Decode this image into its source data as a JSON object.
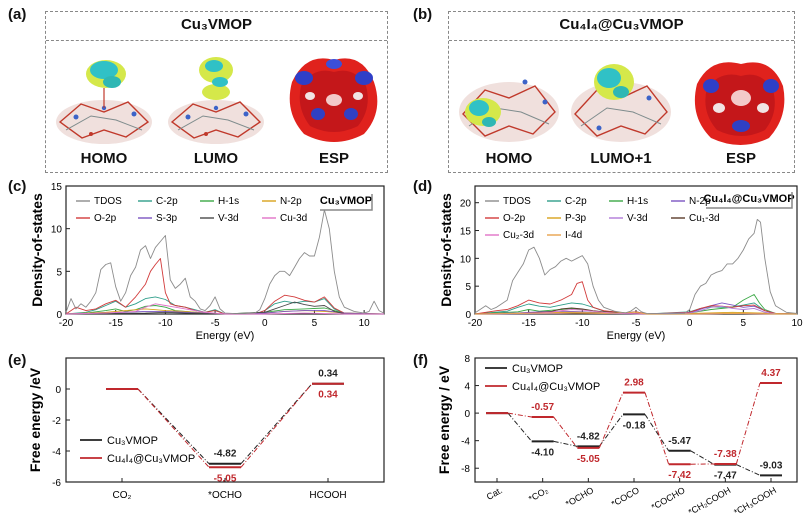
{
  "panels": {
    "a": {
      "label": "(a)",
      "title": "Cu₃VMOP",
      "images": [
        "HOMO",
        "LUMO",
        "ESP"
      ]
    },
    "b": {
      "label": "(b)",
      "title": "Cu₄I₄@Cu₃VMOP",
      "images": [
        "HOMO",
        "LUMO+1",
        "ESP"
      ]
    },
    "c": {
      "label": "(c)"
    },
    "d": {
      "label": "(d)"
    },
    "e": {
      "label": "(e)"
    },
    "f": {
      "label": "(f)"
    }
  },
  "chart_data": [
    {
      "id": "c",
      "type": "line",
      "title": "",
      "xlabel": "Energy (eV)",
      "ylabel": "Density-of-states",
      "xlim": [
        -20,
        12
      ],
      "ylim": [
        0,
        15
      ],
      "xticks": [
        -20,
        -15,
        -10,
        -5,
        0,
        5,
        10
      ],
      "yticks": [
        0,
        5,
        10,
        15
      ],
      "tag": "Cu₃VMOP",
      "series": [
        {
          "name": "TDOS",
          "color": "#8c8c8c",
          "x": [
            -20,
            -19.5,
            -19,
            -18.5,
            -18,
            -17.5,
            -17,
            -16.5,
            -16,
            -15.5,
            -15,
            -14.5,
            -14,
            -13.5,
            -13,
            -12.5,
            -12,
            -11.5,
            -11,
            -10.5,
            -10,
            -9.5,
            -9,
            -8.5,
            -8,
            -7.5,
            -7,
            -6.5,
            -6,
            -5.5,
            -5,
            -4.5,
            -4,
            -3,
            -2,
            -1,
            -0.5,
            0,
            0.5,
            1,
            1.5,
            2,
            2.5,
            3,
            3.5,
            4,
            4.5,
            5,
            5.5,
            6,
            6.5,
            7,
            7.5,
            8,
            9,
            10,
            10.5,
            11,
            11.5,
            12
          ],
          "y": [
            0.2,
            1.8,
            0.6,
            1.2,
            0.8,
            1.5,
            2.5,
            5.2,
            5.8,
            6.0,
            3.2,
            1.5,
            2.5,
            4.5,
            5.5,
            7.5,
            8.0,
            6.5,
            7.8,
            8.5,
            9.2,
            4.0,
            3.0,
            3.5,
            4.2,
            2.0,
            1.5,
            0.6,
            0.4,
            1.0,
            2.0,
            0.6,
            0.1,
            0.05,
            0.05,
            0.1,
            0.5,
            1.8,
            3.5,
            4.5,
            5.0,
            5.0,
            4.5,
            5.5,
            6.5,
            7.2,
            6.8,
            6.8,
            9.0,
            12.2,
            10.0,
            5.0,
            2.0,
            0.8,
            0.3,
            0.1,
            0.3,
            1.5,
            0.4,
            0.1
          ]
        },
        {
          "name": "C-2p",
          "color": "#2f9e8a",
          "x": [
            -20,
            -18,
            -17,
            -16,
            -15,
            -14,
            -13,
            -12,
            -11,
            -10,
            -9,
            -8,
            -6,
            -5,
            -4,
            -1,
            0,
            1,
            2,
            3,
            4,
            5,
            6,
            7,
            8,
            10,
            12
          ],
          "y": [
            0,
            0.2,
            0.5,
            1.0,
            1.5,
            0.8,
            1.2,
            1.8,
            2.0,
            1.7,
            1.0,
            0.8,
            0.2,
            0.5,
            0,
            0,
            0.4,
            1.2,
            1.5,
            1.3,
            1.5,
            1.4,
            1.8,
            0.6,
            0.1,
            0,
            0
          ]
        },
        {
          "name": "H-1s",
          "color": "#3aa845",
          "x": [
            -20,
            -18,
            -16,
            -15,
            -14,
            -13,
            -12,
            -11,
            -10,
            -9,
            -8,
            -6,
            -4,
            0,
            2,
            4,
            6,
            8,
            12
          ],
          "y": [
            0,
            0.1,
            0.4,
            0.6,
            0.3,
            0.5,
            0.9,
            1.0,
            0.8,
            0.4,
            0.3,
            0.1,
            0,
            0.2,
            0.5,
            0.6,
            0.7,
            0.1,
            0
          ]
        },
        {
          "name": "N-2p",
          "color": "#d8a21c",
          "x": [
            -20,
            -16,
            -14,
            -12,
            -11,
            -10,
            -8,
            -6,
            -4,
            0,
            2,
            4,
            6,
            8,
            12
          ],
          "y": [
            0,
            0.2,
            0.4,
            0.6,
            0.5,
            0.4,
            0.3,
            0.1,
            0,
            0.1,
            0.3,
            0.4,
            0.3,
            0.1,
            0
          ]
        },
        {
          "name": "O-2p",
          "color": "#d23b3b",
          "x": [
            -20,
            -19,
            -18,
            -17,
            -16,
            -15,
            -14,
            -13,
            -12,
            -11.5,
            -11,
            -10.5,
            -10,
            -9.5,
            -9,
            -8,
            -7,
            -6,
            -5,
            -4,
            -1,
            0,
            1,
            2,
            3,
            4,
            5,
            6,
            7,
            8,
            10,
            12
          ],
          "y": [
            0,
            0.8,
            0.4,
            0.6,
            1.2,
            1.6,
            0.8,
            2.0,
            3.5,
            5.0,
            5.8,
            6.5,
            2.5,
            1.2,
            1.0,
            0.8,
            0.4,
            0.2,
            0.4,
            0,
            0,
            0.4,
            1.5,
            2.2,
            2.0,
            1.6,
            1.4,
            2.0,
            0.7,
            0.1,
            0,
            0
          ]
        },
        {
          "name": "S-3p",
          "color": "#7b55c2",
          "x": [
            -20,
            -16,
            -14,
            -12,
            -10,
            -8,
            -4,
            0,
            2,
            4,
            6,
            8,
            12
          ],
          "y": [
            0,
            0.1,
            0.2,
            0.3,
            0.3,
            0.2,
            0,
            0.1,
            0.3,
            0.4,
            0.4,
            0.1,
            0
          ]
        },
        {
          "name": "V-3d",
          "color": "#4a4a4a",
          "x": [
            -20,
            -16,
            -12,
            -10,
            -8,
            -4,
            0,
            1,
            2,
            3,
            4,
            5,
            6,
            7,
            8,
            12
          ],
          "y": [
            0,
            0.05,
            0.1,
            0.2,
            0.1,
            0,
            0.2,
            0.6,
            1.0,
            1.4,
            1.1,
            0.9,
            1.0,
            0.3,
            0.05,
            0
          ]
        },
        {
          "name": "Cu-3d",
          "color": "#e073c8",
          "x": [
            -20,
            -16,
            -13,
            -12,
            -11,
            -10,
            -9,
            -8,
            -6,
            -4,
            0,
            4,
            8,
            12
          ],
          "y": [
            0,
            0.1,
            0.3,
            0.8,
            1.2,
            1.0,
            0.8,
            0.6,
            0.2,
            0,
            0,
            0.1,
            0,
            0
          ]
        }
      ]
    },
    {
      "id": "d",
      "type": "line",
      "title": "",
      "xlabel": "Energy (eV)",
      "ylabel": "Density-of-states",
      "xlim": [
        -20,
        10
      ],
      "ylim": [
        0,
        23
      ],
      "xticks": [
        -20,
        -15,
        -10,
        -5,
        0,
        5,
        10
      ],
      "yticks": [
        0,
        5,
        10,
        15,
        20
      ],
      "tag": "Cu₄I₄@Cu₃VMOP",
      "series": [
        {
          "name": "TDOS",
          "color": "#8c8c8c",
          "x": [
            -20,
            -19,
            -18.5,
            -18,
            -17,
            -16.5,
            -16,
            -15.5,
            -15,
            -14.5,
            -14,
            -13.5,
            -13,
            -12.5,
            -12,
            -11.5,
            -11,
            -10.5,
            -10,
            -9.5,
            -9,
            -8.5,
            -8,
            -7,
            -6,
            -5.5,
            -5,
            -4.5,
            -4,
            -2,
            -0.5,
            0,
            0.5,
            1,
            1.5,
            2,
            2.5,
            3,
            3.5,
            4,
            4.5,
            5,
            5.5,
            6,
            6.3,
            6.6,
            7,
            7.5,
            8,
            9,
            10
          ],
          "y": [
            0.2,
            1.5,
            0.8,
            1.2,
            2.5,
            6.0,
            7.5,
            9.0,
            11.5,
            12.0,
            10.0,
            7.0,
            8.0,
            8.5,
            9.5,
            10.0,
            9.5,
            10.0,
            10.5,
            9.0,
            5.0,
            2.5,
            1.2,
            0.5,
            0.2,
            0.5,
            1.2,
            0.4,
            0.1,
            0.05,
            0.1,
            0.8,
            3.5,
            5.0,
            5.5,
            7.0,
            7.5,
            7.8,
            9.0,
            9.0,
            10.0,
            11.5,
            13.5,
            14.5,
            17.0,
            16.5,
            10.0,
            4.0,
            1.5,
            0.3,
            0.1
          ]
        },
        {
          "name": "C-2p",
          "color": "#2f9e8a",
          "x": [
            -20,
            -17,
            -16,
            -15,
            -14,
            -13,
            -12,
            -11,
            -10,
            -9,
            -8,
            -6,
            -5,
            -4,
            0,
            1,
            2,
            3,
            4,
            5,
            6,
            7,
            8,
            10
          ],
          "y": [
            0,
            0.5,
            1.2,
            1.8,
            1.4,
            1.2,
            1.6,
            2.0,
            1.8,
            1.2,
            0.5,
            0.2,
            0.4,
            0,
            0.4,
            1.0,
            1.3,
            1.2,
            1.3,
            1.6,
            2.0,
            0.6,
            0.1,
            0
          ]
        },
        {
          "name": "H-1s",
          "color": "#3aa845",
          "x": [
            -20,
            -16,
            -15,
            -14,
            -12,
            -11,
            -10,
            -9,
            -8,
            -4,
            0,
            2,
            4,
            5,
            6,
            6.5,
            7,
            8,
            10
          ],
          "y": [
            0,
            0.4,
            0.8,
            0.5,
            0.8,
            1.0,
            0.8,
            0.5,
            0.2,
            0,
            0.2,
            0.8,
            1.2,
            2.5,
            3.5,
            2.0,
            0.8,
            0.1,
            0
          ]
        },
        {
          "name": "N-2p",
          "color": "#7b55c2",
          "x": [
            -20,
            -16,
            -14,
            -12,
            -10,
            -8,
            -4,
            0,
            2,
            3,
            4,
            5,
            6,
            7,
            8,
            10
          ],
          "y": [
            0,
            0.2,
            0.4,
            0.5,
            0.4,
            0.2,
            0,
            0.2,
            1.5,
            2.0,
            1.6,
            1.2,
            1.4,
            0.6,
            0.1,
            0
          ]
        },
        {
          "name": "O-2p",
          "color": "#d23b3b",
          "x": [
            -20,
            -18,
            -17,
            -16,
            -15,
            -14,
            -13,
            -12,
            -11,
            -10.5,
            -10,
            -9.5,
            -9,
            -8,
            -6,
            -5,
            -4,
            0,
            1,
            2,
            3,
            4,
            5,
            6,
            7,
            8,
            10
          ],
          "y": [
            0,
            0.6,
            0.8,
            1.5,
            2.5,
            2.0,
            1.8,
            2.5,
            3.5,
            5.5,
            5.8,
            2.5,
            1.2,
            0.6,
            0.2,
            0.4,
            0,
            0.3,
            1.0,
            1.5,
            1.4,
            1.2,
            1.5,
            1.6,
            0.6,
            0.1,
            0
          ]
        },
        {
          "name": "P-3p",
          "color": "#d8a21c",
          "x": [
            -20,
            -14,
            -12,
            -10,
            -8,
            -4,
            0,
            4,
            8,
            10
          ],
          "y": [
            0,
            0.2,
            0.3,
            0.3,
            0.2,
            0,
            0.1,
            0.3,
            0.1,
            0
          ]
        },
        {
          "name": "V-3d",
          "color": "#b07ad8",
          "x": [
            -20,
            -12,
            -10,
            -8,
            -4,
            0,
            1,
            2,
            3,
            4,
            5,
            6,
            7,
            8,
            10
          ],
          "y": [
            0,
            0.1,
            0.2,
            0.1,
            0,
            0.2,
            0.6,
            1.2,
            1.4,
            1.0,
            0.8,
            1.0,
            0.3,
            0.05,
            0
          ]
        },
        {
          "name": "Cu₁-3d",
          "color": "#5a3a2a",
          "x": [
            -20,
            -16,
            -13,
            -12,
            -11,
            -10,
            -9,
            -8,
            -6,
            -4,
            0,
            4,
            8,
            10
          ],
          "y": [
            0,
            0.1,
            0.4,
            0.9,
            1.1,
            0.9,
            0.6,
            0.4,
            0.2,
            0,
            0,
            0.1,
            0,
            0
          ]
        },
        {
          "name": "Cu₂-3d",
          "color": "#e073c8",
          "x": [
            -20,
            -16,
            -13,
            -12,
            -11,
            -10,
            -9,
            -8,
            -6,
            -4,
            0,
            4,
            8,
            10
          ],
          "y": [
            0,
            0.1,
            0.3,
            0.6,
            0.8,
            0.7,
            0.5,
            0.3,
            0.1,
            0,
            0,
            0.1,
            0,
            0
          ]
        },
        {
          "name": "I-4d",
          "color": "#e8a34c",
          "x": [
            -20,
            -16,
            -12,
            -8,
            -5,
            -4,
            0,
            4,
            8,
            10
          ],
          "y": [
            0,
            0.1,
            0.2,
            0.1,
            0.3,
            0,
            0,
            0.1,
            0,
            0
          ]
        }
      ]
    },
    {
      "id": "e",
      "type": "line",
      "title": "",
      "xlabel": "",
      "ylabel": "Free energy /eV",
      "categories": [
        "CO₂",
        "*OCHO",
        "HCOOH"
      ],
      "ylim": [
        -6,
        2
      ],
      "yticks": [
        -6,
        -4,
        -2,
        0
      ],
      "series": [
        {
          "name": "Cu₃VMOP",
          "color": "#222222",
          "values": [
            0,
            -4.82,
            0.34
          ],
          "labels": [
            "",
            "-4.82",
            "0.34"
          ]
        },
        {
          "name": "Cu₄I₄@Cu₃VMOP",
          "color": "#c0282d",
          "values": [
            0,
            -5.05,
            0.34
          ],
          "labels": [
            "",
            "-5.05",
            "0.34"
          ]
        }
      ]
    },
    {
      "id": "f",
      "type": "line",
      "title": "",
      "xlabel": "",
      "ylabel": "Free energy / eV",
      "categories": [
        "Cat.",
        "*CO₂",
        "*OCHO",
        "*COCO",
        "*COCHO",
        "*CH₂COOH",
        "*CH₃COOH"
      ],
      "ylim": [
        -10,
        8
      ],
      "yticks": [
        -8,
        -4,
        0,
        4,
        8
      ],
      "series": [
        {
          "name": "Cu₃VMOP",
          "color": "#222222",
          "values": [
            0,
            -4.1,
            -4.82,
            -0.18,
            -5.47,
            -7.47,
            -9.03
          ],
          "labels": [
            "",
            "-4.10",
            "-4.82",
            "-0.18",
            "-5.47",
            "-7.47",
            "-9.03"
          ]
        },
        {
          "name": "Cu₄I₄@Cu₃VMOP",
          "color": "#c0282d",
          "values": [
            0,
            -0.57,
            -5.05,
            2.98,
            -7.42,
            -7.38,
            4.37
          ],
          "labels": [
            "",
            "-0.57",
            "-5.05",
            "2.98",
            "-7.42",
            "-7.38",
            "4.37"
          ]
        }
      ]
    }
  ]
}
